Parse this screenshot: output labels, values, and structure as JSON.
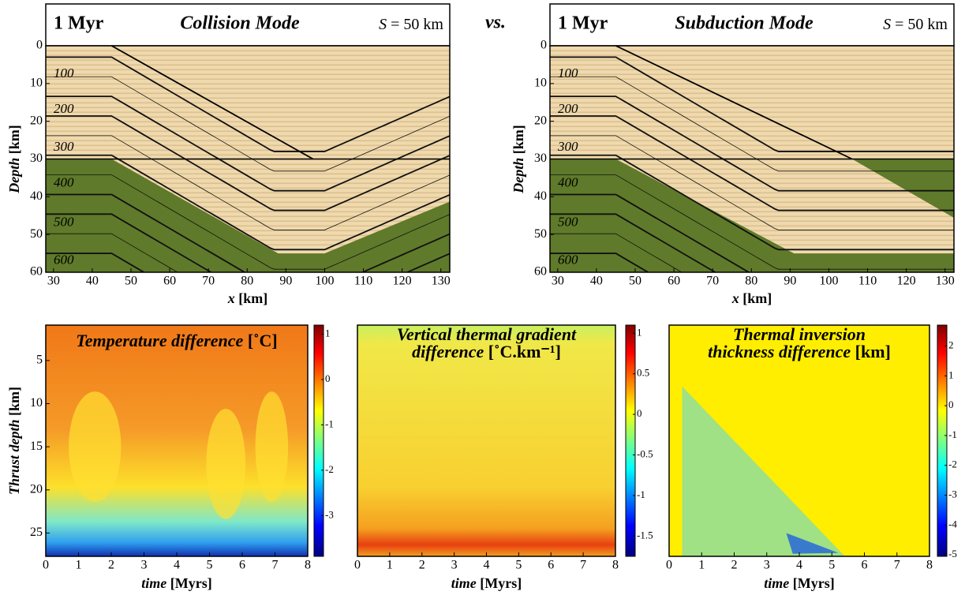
{
  "separator": "vs.",
  "top_panels": [
    {
      "time": "1 Myr",
      "mode": "Collision Mode",
      "size_symbol": "S",
      "size_text": "= 50 km",
      "isotherm_labels": [
        "100",
        "200",
        "300",
        "400",
        "500",
        "600"
      ],
      "x_label": {
        "var": "x",
        "unit": "[km]"
      },
      "y_label": {
        "var": "Depth",
        "unit": "[km]"
      },
      "xlim": [
        28,
        132.3
      ],
      "ylim": [
        0,
        60
      ],
      "xticks": [
        30,
        40,
        50,
        60,
        70,
        80,
        90,
        100,
        110,
        120,
        130
      ],
      "yticks": [
        0,
        10,
        20,
        30,
        40,
        50,
        60
      ]
    },
    {
      "time": "1 Myr",
      "mode": "Subduction Mode",
      "size_symbol": "S",
      "size_text": "= 50 km",
      "isotherm_labels": [
        "100",
        "200",
        "300",
        "400",
        "500",
        "600"
      ],
      "x_label": {
        "var": "x",
        "unit": "[km]"
      },
      "y_label": {
        "var": "Depth",
        "unit": "[km]"
      },
      "xlim": [
        28,
        132.3
      ],
      "ylim": [
        0,
        60
      ],
      "xticks": [
        30,
        40,
        50,
        60,
        70,
        80,
        90,
        100,
        110,
        120,
        130
      ],
      "yticks": [
        0,
        10,
        20,
        30,
        40,
        50,
        60
      ]
    }
  ],
  "bottom_panels": [
    {
      "title_lines": [
        {
          "text": "Temperature difference",
          "unit": "[˚C]"
        }
      ],
      "x_label": {
        "var": "time",
        "unit": "[Myrs]"
      },
      "y_label": {
        "var": "Thrust depth",
        "unit": "[km]"
      },
      "xlim": [
        0,
        8
      ],
      "ylim": [
        0.9,
        27.7
      ],
      "xticks": [
        0,
        1,
        2,
        3,
        4,
        5,
        6,
        7,
        8
      ],
      "yticks": [
        5,
        10,
        15,
        20,
        25
      ],
      "cbar_lim": [
        -3.9,
        1.2
      ],
      "cbar_ticks": [
        1,
        0,
        -1,
        -2,
        -3
      ]
    },
    {
      "title_lines": [
        {
          "text": "Vertical thermal gradient"
        },
        {
          "text": "difference",
          "unit": "[˚C.km⁻¹]"
        }
      ],
      "x_label": {
        "var": "time",
        "unit": "[Myrs]"
      },
      "xlim": [
        0,
        8
      ],
      "xticks": [
        0,
        1,
        2,
        3,
        4,
        5,
        6,
        7,
        8
      ],
      "cbar_lim": [
        -1.75,
        1.1
      ],
      "cbar_ticks": [
        1,
        0.5,
        0,
        -0.5,
        -1,
        -1.5
      ]
    },
    {
      "title_lines": [
        {
          "text": "Thermal inversion"
        },
        {
          "text": "thickness difference",
          "unit": "[km]"
        }
      ],
      "x_label": {
        "var": "time",
        "unit": "[Myrs]"
      },
      "xlim": [
        0,
        8
      ],
      "xticks": [
        0,
        1,
        2,
        3,
        4,
        5,
        6,
        7,
        8
      ],
      "cbar_lim": [
        -5.05,
        2.7
      ],
      "cbar_ticks": [
        2,
        1,
        0,
        -1,
        -2,
        -3,
        -4,
        -5
      ]
    }
  ]
}
